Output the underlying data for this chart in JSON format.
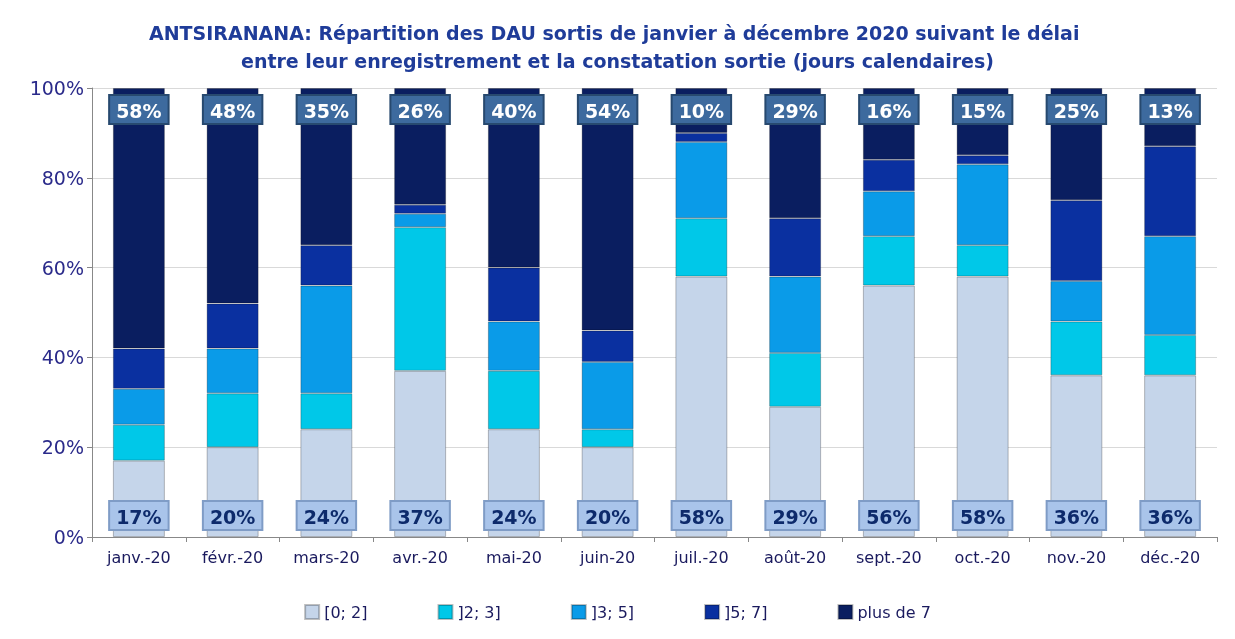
{
  "chart_data": {
    "type": "bar",
    "stacked": true,
    "title": "ANTSIRANANA: Répartition des DAU sortis de janvier à décembre 2020 suivant le délai entre leur enregistrement et la constatation sortie (jours calendaires)",
    "categories": [
      "janv.-20",
      "févr.-20",
      "mars-20",
      "avr.-20",
      "mai-20",
      "juin-20",
      "juil.-20",
      "août-20",
      "sept.-20",
      "oct.-20",
      "nov.-20",
      "déc.-20"
    ],
    "series": [
      {
        "name": "[0; 2]",
        "color": "#c5d5ea",
        "values": [
          17,
          20,
          24,
          37,
          24,
          20,
          58,
          29,
          56,
          58,
          36,
          36
        ],
        "value_labels": [
          "17%",
          "20%",
          "24%",
          "37%",
          "24%",
          "20%",
          "58%",
          "29%",
          "56%",
          "58%",
          "36%",
          "36%"
        ]
      },
      {
        "name": "]2; 3]",
        "color": "#00c8e8",
        "values": [
          8,
          12,
          8,
          32,
          13,
          4,
          13,
          12,
          11,
          7,
          12,
          9
        ]
      },
      {
        "name": "]3; 5]",
        "color": "#0a9be8",
        "values": [
          8,
          10,
          24,
          3,
          11,
          15,
          17,
          17,
          10,
          18,
          9,
          22
        ]
      },
      {
        "name": "]5; 7]",
        "color": "#0a30a0",
        "values": [
          9,
          10,
          9,
          2,
          12,
          7,
          2,
          13,
          7,
          2,
          18,
          20
        ]
      },
      {
        "name": "plus de 7",
        "color": "#0a1e60",
        "values": [
          58,
          48,
          35,
          26,
          40,
          54,
          10,
          29,
          16,
          15,
          25,
          13
        ],
        "value_labels": [
          "58%",
          "48%",
          "35%",
          "26%",
          "40%",
          "54%",
          "10%",
          "29%",
          "16%",
          "15%",
          "25%",
          "13%"
        ]
      }
    ],
    "ylim": [
      0,
      100
    ],
    "yticks": [
      {
        "value": 0,
        "label": "0%"
      },
      {
        "value": 20,
        "label": "20%"
      },
      {
        "value": 40,
        "label": "40%"
      },
      {
        "value": 60,
        "label": "60%"
      },
      {
        "value": 80,
        "label": "80%"
      },
      {
        "value": 100,
        "label": "100%"
      }
    ],
    "grid": "y",
    "legend": "bottom"
  }
}
